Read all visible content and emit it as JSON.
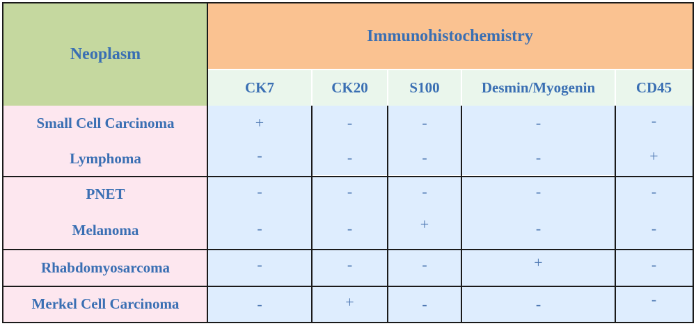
{
  "header": {
    "neoplasm": "Neoplasm",
    "immuno": "Immunohistochemistry",
    "markers": [
      "CK7",
      "CK20",
      "S100",
      "Desmin/Myogenin",
      "CD45"
    ]
  },
  "rows": [
    {
      "name": "Small Cell Carcinoma",
      "values": [
        "+",
        "-",
        "-",
        "-",
        "-"
      ]
    },
    {
      "name": "Lymphoma",
      "values": [
        "-",
        "-",
        "-",
        "-",
        "+"
      ]
    },
    {
      "name": "PNET",
      "values": [
        "-",
        "-",
        "-",
        "-",
        "-"
      ]
    },
    {
      "name": "Melanoma",
      "values": [
        "-",
        "-",
        "+",
        "-",
        "-"
      ]
    },
    {
      "name": "Rhabdomyosarcoma",
      "values": [
        "-",
        "-",
        "-",
        "+",
        "-"
      ]
    },
    {
      "name": "Merkel Cell Carcinoma",
      "values": [
        "-",
        "+",
        "-",
        "-",
        "-"
      ]
    }
  ]
}
